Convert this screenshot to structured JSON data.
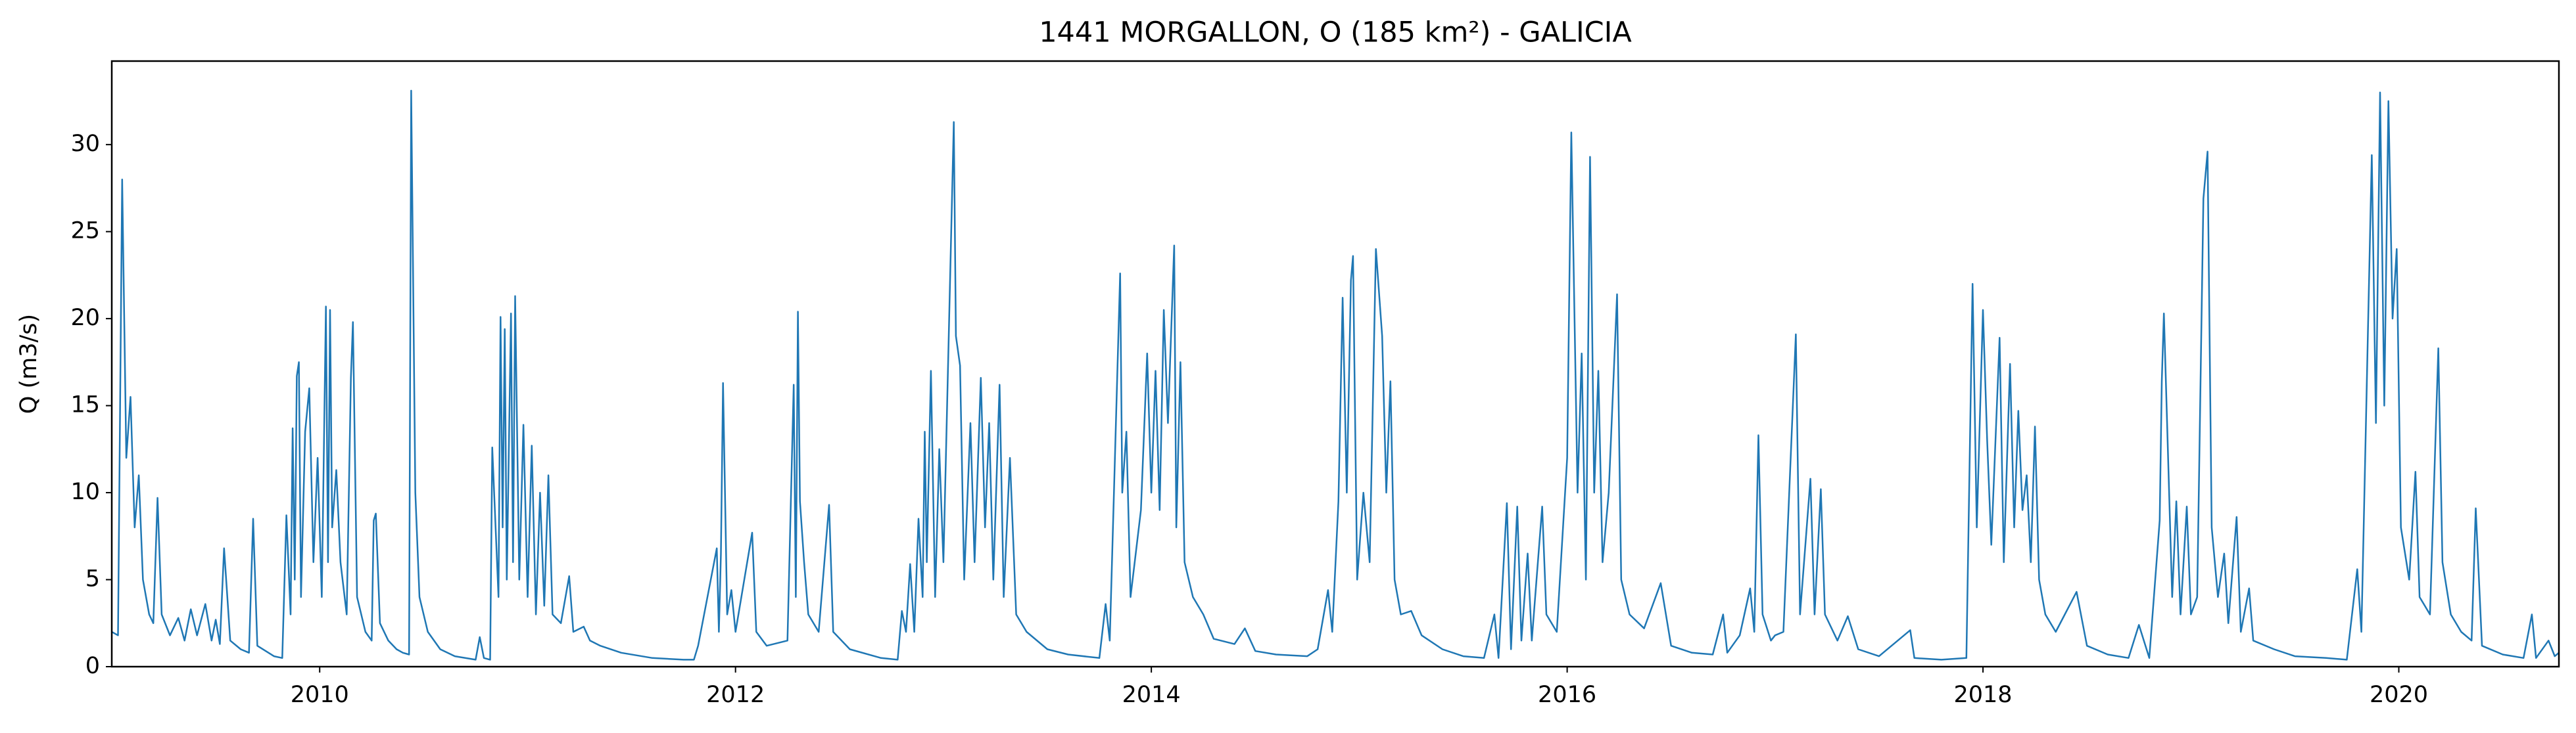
{
  "chart_data": {
    "type": "line",
    "title": "1441 MORGALLON, O (185 km²) - GALICIA",
    "y_label": "Q (m3/s)",
    "color": "#1f77b4",
    "xlim": [
      2009.0,
      2020.77
    ],
    "xticks": [
      2010,
      2012,
      2014,
      2016,
      2018,
      2020
    ],
    "ylim": [
      0,
      34.8
    ],
    "yticks": [
      0,
      5,
      10,
      15,
      20,
      25,
      30
    ],
    "grid": false,
    "x": [
      2009.0,
      2009.03,
      2009.05,
      2009.07,
      2009.09,
      2009.11,
      2009.13,
      2009.15,
      2009.18,
      2009.2,
      2009.22,
      2009.24,
      2009.28,
      2009.32,
      2009.35,
      2009.38,
      2009.41,
      2009.45,
      2009.48,
      2009.5,
      2009.52,
      2009.54,
      2009.57,
      2009.62,
      2009.66,
      2009.68,
      2009.7,
      2009.78,
      2009.82,
      2009.84,
      2009.86,
      2009.87,
      2009.88,
      2009.89,
      2009.9,
      2009.91,
      2009.93,
      2009.95,
      2009.97,
      2009.99,
      2010.01,
      2010.03,
      2010.04,
      2010.05,
      2010.06,
      2010.08,
      2010.1,
      2010.13,
      2010.15,
      2010.16,
      2010.18,
      2010.22,
      2010.25,
      2010.26,
      2010.27,
      2010.29,
      2010.33,
      2010.37,
      2010.4,
      2010.43,
      2010.44,
      2010.46,
      2010.48,
      2010.52,
      2010.58,
      2010.65,
      2010.75,
      2010.77,
      2010.79,
      2010.82,
      2010.83,
      2010.86,
      2010.87,
      2010.88,
      2010.89,
      2010.9,
      2010.92,
      2010.93,
      2010.94,
      2010.96,
      2010.98,
      2011.0,
      2011.02,
      2011.04,
      2011.06,
      2011.08,
      2011.1,
      2011.12,
      2011.16,
      2011.2,
      2011.22,
      2011.27,
      2011.3,
      2011.35,
      2011.45,
      2011.6,
      2011.75,
      2011.8,
      2011.82,
      2011.91,
      2011.92,
      2011.93,
      2011.94,
      2011.96,
      2011.98,
      2012.0,
      2012.08,
      2012.1,
      2012.15,
      2012.25,
      2012.28,
      2012.29,
      2012.3,
      2012.31,
      2012.33,
      2012.35,
      2012.4,
      2012.45,
      2012.47,
      2012.55,
      2012.7,
      2012.78,
      2012.8,
      2012.82,
      2012.84,
      2012.86,
      2012.88,
      2012.9,
      2012.91,
      2012.92,
      2012.94,
      2012.96,
      2012.98,
      2013.0,
      2013.05,
      2013.06,
      2013.08,
      2013.1,
      2013.13,
      2013.15,
      2013.18,
      2013.2,
      2013.22,
      2013.24,
      2013.27,
      2013.29,
      2013.32,
      2013.35,
      2013.4,
      2013.5,
      2013.6,
      2013.75,
      2013.78,
      2013.8,
      2013.85,
      2013.86,
      2013.88,
      2013.9,
      2013.95,
      2013.98,
      2014.0,
      2014.02,
      2014.04,
      2014.06,
      2014.08,
      2014.11,
      2014.12,
      2014.14,
      2014.16,
      2014.2,
      2014.25,
      2014.3,
      2014.4,
      2014.45,
      2014.5,
      2014.6,
      2014.75,
      2014.8,
      2014.85,
      2014.87,
      2014.9,
      2014.92,
      2014.94,
      2014.96,
      2014.97,
      2014.99,
      2015.02,
      2015.05,
      2015.08,
      2015.11,
      2015.13,
      2015.15,
      2015.17,
      2015.2,
      2015.25,
      2015.3,
      2015.4,
      2015.5,
      2015.6,
      2015.65,
      2015.67,
      2015.71,
      2015.73,
      2015.76,
      2015.78,
      2015.81,
      2015.83,
      2015.88,
      2015.9,
      2015.95,
      2016.0,
      2016.02,
      2016.05,
      2016.07,
      2016.09,
      2016.11,
      2016.13,
      2016.15,
      2016.17,
      2016.2,
      2016.24,
      2016.26,
      2016.3,
      2016.37,
      2016.45,
      2016.5,
      2016.6,
      2016.7,
      2016.75,
      2016.77,
      2016.83,
      2016.88,
      2016.9,
      2016.92,
      2016.94,
      2016.98,
      2017.0,
      2017.04,
      2017.1,
      2017.12,
      2017.17,
      2017.19,
      2017.22,
      2017.24,
      2017.3,
      2017.35,
      2017.4,
      2017.5,
      2017.65,
      2017.67,
      2017.8,
      2017.92,
      2017.95,
      2017.97,
      2018.0,
      2018.02,
      2018.04,
      2018.08,
      2018.1,
      2018.13,
      2018.15,
      2018.17,
      2018.19,
      2018.21,
      2018.23,
      2018.25,
      2018.27,
      2018.3,
      2018.35,
      2018.45,
      2018.5,
      2018.6,
      2018.7,
      2018.75,
      2018.8,
      2018.85,
      2018.86,
      2018.87,
      2018.91,
      2018.93,
      2018.95,
      2018.98,
      2019.0,
      2019.03,
      2019.06,
      2019.08,
      2019.1,
      2019.13,
      2019.16,
      2019.18,
      2019.22,
      2019.24,
      2019.28,
      2019.3,
      2019.4,
      2019.5,
      2019.65,
      2019.75,
      2019.8,
      2019.82,
      2019.85,
      2019.87,
      2019.89,
      2019.91,
      2019.93,
      2019.95,
      2019.97,
      2019.99,
      2020.01,
      2020.05,
      2020.08,
      2020.1,
      2020.15,
      2020.19,
      2020.21,
      2020.25,
      2020.3,
      2020.35,
      2020.37,
      2020.4,
      2020.5,
      2020.6,
      2020.64,
      2020.66,
      2020.72,
      2020.75,
      2020.77
    ],
    "values": [
      2.0,
      1.8,
      28.0,
      12,
      15.5,
      8,
      11,
      5,
      3,
      2.5,
      9.7,
      3,
      1.8,
      2.8,
      1.5,
      3.3,
      1.8,
      3.6,
      1.5,
      2.7,
      1.3,
      6.8,
      1.5,
      1.0,
      0.8,
      8.5,
      1.2,
      0.6,
      0.5,
      8.7,
      3,
      13.7,
      5,
      16.7,
      17.5,
      4,
      13.5,
      16,
      6,
      12,
      4,
      20.7,
      6,
      20.5,
      8,
      11.3,
      6,
      3,
      16.6,
      19.8,
      4,
      2,
      1.5,
      8.4,
      8.8,
      2.5,
      1.5,
      1.0,
      0.8,
      0.7,
      33.1,
      10,
      4,
      2,
      1,
      0.6,
      0.4,
      1.7,
      0.5,
      0.4,
      12.6,
      4,
      20.1,
      8,
      19.4,
      5,
      20.3,
      6,
      21.3,
      5,
      13.9,
      4,
      12.7,
      3,
      10,
      3.5,
      11,
      3,
      2.5,
      5.2,
      2,
      2.3,
      1.5,
      1.2,
      0.8,
      0.5,
      0.4,
      0.4,
      1.2,
      6.8,
      2,
      6.5,
      16.3,
      3,
      4.4,
      2,
      7.7,
      2,
      1.2,
      1.5,
      16.2,
      4,
      20.4,
      9.5,
      6,
      3,
      2,
      9.3,
      2,
      1,
      0.5,
      0.4,
      3.2,
      2,
      5.9,
      2,
      8.5,
      4,
      13.5,
      6,
      17,
      4,
      12.5,
      6,
      31.3,
      19,
      17.3,
      5,
      14,
      6,
      16.6,
      8,
      14,
      5,
      16.2,
      4,
      12,
      3,
      2,
      1,
      0.7,
      0.5,
      3.6,
      1.5,
      22.6,
      10,
      13.5,
      4,
      9,
      18,
      10,
      17,
      9,
      20.5,
      14,
      24.2,
      8,
      17.5,
      6,
      4,
      3,
      1.6,
      1.3,
      2.2,
      0.9,
      0.7,
      0.6,
      1,
      4.4,
      2,
      9.5,
      21.2,
      10,
      22.2,
      23.6,
      5,
      10,
      6,
      24,
      19,
      10,
      16.4,
      5,
      3,
      3.2,
      1.8,
      1.0,
      0.6,
      0.5,
      3,
      0.5,
      9.4,
      1,
      9.2,
      1.5,
      6.5,
      1.5,
      9.2,
      3,
      2,
      12,
      30.7,
      10,
      18,
      5,
      29.3,
      10,
      17,
      6,
      10,
      21.4,
      5,
      3,
      2.2,
      4.8,
      1.2,
      0.8,
      0.7,
      3,
      0.8,
      1.8,
      4.5,
      2,
      13.3,
      3,
      1.5,
      1.8,
      2,
      19.1,
      3,
      10.8,
      3,
      10.2,
      3,
      1.5,
      2.9,
      1,
      0.6,
      2.1,
      0.5,
      0.4,
      0.5,
      22,
      8,
      20.5,
      13,
      7,
      18.9,
      6,
      17.4,
      8,
      14.7,
      9,
      11,
      6,
      13.8,
      5,
      3,
      2,
      4.3,
      1.2,
      0.7,
      0.5,
      2.4,
      0.5,
      8.4,
      16.4,
      20.3,
      4,
      9.5,
      3,
      9.2,
      3,
      4,
      26.9,
      29.6,
      8,
      4,
      6.5,
      2.5,
      8.6,
      2,
      4.5,
      1.5,
      1,
      0.6,
      0.5,
      0.4,
      5.6,
      2,
      18.5,
      29.4,
      14,
      33,
      15,
      32.5,
      20,
      24,
      8,
      5,
      11.2,
      4,
      3,
      18.3,
      6,
      3,
      2,
      1.5,
      9.1,
      1.2,
      0.7,
      0.5,
      3,
      0.5,
      1.5,
      0.6,
      0.8
    ]
  }
}
